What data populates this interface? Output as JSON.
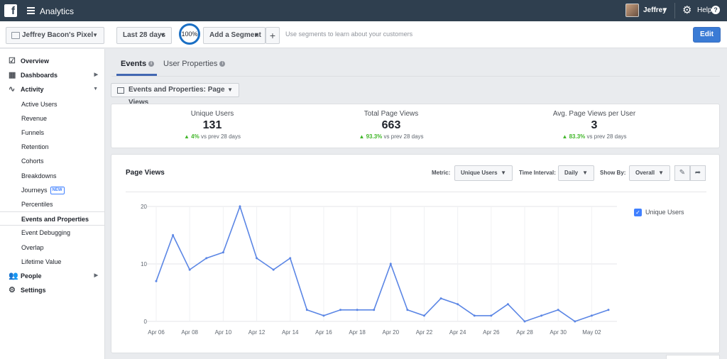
{
  "app": {
    "title": "Analytics",
    "logo": "f"
  },
  "user": {
    "name": "Jeffrey",
    "help": "Help"
  },
  "toolbar": {
    "pixel": "Jeffrey Bacon's Pixel",
    "date_range": "Last 28 days",
    "zoom": "100%",
    "add_segment": "Add a Segment",
    "plus": "+",
    "segment_hint": "Use segments to learn about your customers",
    "edit": "Edit"
  },
  "sidebar": {
    "items": [
      {
        "label": "Overview",
        "level": "top",
        "icon": "overview-icon"
      },
      {
        "label": "Dashboards",
        "level": "top",
        "icon": "dashboards-icon"
      },
      {
        "label": "Activity",
        "level": "top",
        "icon": "activity-icon"
      },
      {
        "label": "Active Users",
        "level": "sub"
      },
      {
        "label": "Revenue",
        "level": "sub"
      },
      {
        "label": "Funnels",
        "level": "sub"
      },
      {
        "label": "Retention",
        "level": "sub"
      },
      {
        "label": "Cohorts",
        "level": "sub"
      },
      {
        "label": "Breakdowns",
        "level": "sub"
      },
      {
        "label": "Journeys",
        "level": "sub",
        "badge": "NEW"
      },
      {
        "label": "Percentiles",
        "level": "sub"
      },
      {
        "label": "Events and Properties",
        "level": "sub",
        "active": true
      },
      {
        "label": "Event Debugging",
        "level": "sub"
      },
      {
        "label": "Overlap",
        "level": "sub"
      },
      {
        "label": "Lifetime Value",
        "level": "sub"
      },
      {
        "label": "People",
        "level": "top",
        "icon": "people-icon"
      },
      {
        "label": "Settings",
        "level": "top",
        "icon": "settings-icon"
      }
    ]
  },
  "tabs": [
    {
      "label": "Events",
      "active": true
    },
    {
      "label": "User Properties",
      "active": false
    }
  ],
  "dashboard_select": "Events and Properties: Page Views",
  "summary": [
    {
      "label": "Unique Users",
      "value": "131",
      "change": "4%",
      "suffix": "vs prev 28 days"
    },
    {
      "label": "Total Page Views",
      "value": "663",
      "change": "93.3%",
      "suffix": "vs prev 28 days"
    },
    {
      "label": "Avg. Page Views per User",
      "value": "3",
      "change": "83.3%",
      "suffix": "vs prev 28 days"
    }
  ],
  "chart_panel": {
    "title": "Page Views",
    "metric_label": "Metric:",
    "metric_value": "Unique Users",
    "interval_label": "Time Interval:",
    "interval_value": "Daily",
    "showby_label": "Show By:",
    "showby_value": "Overall"
  },
  "colors": {
    "accent": "#4080ff",
    "line": "#5b86e5",
    "positive": "#42b72a",
    "topbar": "#2f3f4f"
  },
  "chart_data": {
    "type": "line",
    "ylim": [
      0,
      20
    ],
    "yticks": [
      0,
      10,
      20
    ],
    "xtick_labels": [
      "Apr 06",
      "Apr 08",
      "Apr 10",
      "Apr 12",
      "Apr 14",
      "Apr 16",
      "Apr 18",
      "Apr 20",
      "Apr 22",
      "Apr 24",
      "Apr 26",
      "Apr 28",
      "Apr 30",
      "May 02"
    ],
    "x": [
      "Apr 06",
      "Apr 07",
      "Apr 08",
      "Apr 09",
      "Apr 10",
      "Apr 11",
      "Apr 12",
      "Apr 13",
      "Apr 14",
      "Apr 15",
      "Apr 16",
      "Apr 17",
      "Apr 18",
      "Apr 19",
      "Apr 20",
      "Apr 21",
      "Apr 22",
      "Apr 23",
      "Apr 24",
      "Apr 25",
      "Apr 26",
      "Apr 27",
      "Apr 28",
      "Apr 29",
      "Apr 30",
      "May 01",
      "May 02",
      "May 03"
    ],
    "series": [
      {
        "name": "Unique Users",
        "values": [
          7,
          15,
          9,
          11,
          12,
          20,
          11,
          9,
          11,
          2,
          1,
          2,
          2,
          2,
          10,
          2,
          1,
          4,
          3,
          1,
          1,
          3,
          0,
          1,
          2,
          0,
          1,
          2
        ]
      }
    ],
    "grid": true,
    "legend": "right"
  }
}
